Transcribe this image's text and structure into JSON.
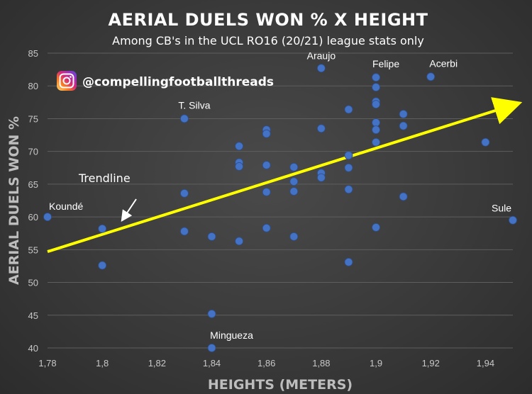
{
  "chart_data": {
    "type": "scatter",
    "title": "AERIAL DUELS WON % X HEIGHT",
    "subtitle": "Among CB's in the UCL RO16 (20/21) league stats only",
    "xlabel": "HEIGHTS (METERS)",
    "ylabel": "AERIAL DUELS WON %",
    "xlim": [
      1.78,
      1.95
    ],
    "ylim": [
      40,
      85
    ],
    "x_ticks": [
      "1,78",
      "1,8",
      "1,82",
      "1,84",
      "1,86",
      "1,88",
      "1,9",
      "1,92",
      "1,94"
    ],
    "y_ticks": [
      "40",
      "45",
      "50",
      "55",
      "60",
      "65",
      "70",
      "75",
      "80",
      "85"
    ],
    "grid": "horizontal",
    "points": [
      {
        "x": 1.78,
        "y": 60.0,
        "label": "Koundé"
      },
      {
        "x": 1.8,
        "y": 58.2,
        "label": ""
      },
      {
        "x": 1.8,
        "y": 52.6,
        "label": ""
      },
      {
        "x": 1.83,
        "y": 75.0,
        "label": "T. Silva"
      },
      {
        "x": 1.83,
        "y": 63.6,
        "label": ""
      },
      {
        "x": 1.83,
        "y": 57.8,
        "label": ""
      },
      {
        "x": 1.84,
        "y": 57.0,
        "label": ""
      },
      {
        "x": 1.84,
        "y": 45.2,
        "label": ""
      },
      {
        "x": 1.84,
        "y": 40.0,
        "label": "Mingueza"
      },
      {
        "x": 1.85,
        "y": 70.8,
        "label": ""
      },
      {
        "x": 1.85,
        "y": 68.3,
        "label": ""
      },
      {
        "x": 1.85,
        "y": 67.7,
        "label": ""
      },
      {
        "x": 1.85,
        "y": 56.3,
        "label": ""
      },
      {
        "x": 1.86,
        "y": 73.3,
        "label": ""
      },
      {
        "x": 1.86,
        "y": 72.7,
        "label": ""
      },
      {
        "x": 1.86,
        "y": 67.9,
        "label": ""
      },
      {
        "x": 1.86,
        "y": 63.8,
        "label": ""
      },
      {
        "x": 1.86,
        "y": 58.3,
        "label": ""
      },
      {
        "x": 1.87,
        "y": 67.6,
        "label": ""
      },
      {
        "x": 1.87,
        "y": 65.4,
        "label": ""
      },
      {
        "x": 1.87,
        "y": 63.9,
        "label": ""
      },
      {
        "x": 1.87,
        "y": 57.0,
        "label": ""
      },
      {
        "x": 1.88,
        "y": 82.7,
        "label": "Araujo"
      },
      {
        "x": 1.88,
        "y": 73.5,
        "label": ""
      },
      {
        "x": 1.88,
        "y": 66.7,
        "label": ""
      },
      {
        "x": 1.88,
        "y": 66.0,
        "label": ""
      },
      {
        "x": 1.89,
        "y": 76.4,
        "label": ""
      },
      {
        "x": 1.89,
        "y": 69.4,
        "label": ""
      },
      {
        "x": 1.89,
        "y": 67.5,
        "label": ""
      },
      {
        "x": 1.89,
        "y": 64.2,
        "label": ""
      },
      {
        "x": 1.89,
        "y": 53.1,
        "label": ""
      },
      {
        "x": 1.9,
        "y": 81.3,
        "label": "Felipe"
      },
      {
        "x": 1.9,
        "y": 79.8,
        "label": ""
      },
      {
        "x": 1.9,
        "y": 77.6,
        "label": ""
      },
      {
        "x": 1.9,
        "y": 77.2,
        "label": ""
      },
      {
        "x": 1.9,
        "y": 74.4,
        "label": ""
      },
      {
        "x": 1.9,
        "y": 73.3,
        "label": ""
      },
      {
        "x": 1.9,
        "y": 71.4,
        "label": ""
      },
      {
        "x": 1.9,
        "y": 58.4,
        "label": ""
      },
      {
        "x": 1.91,
        "y": 75.7,
        "label": ""
      },
      {
        "x": 1.91,
        "y": 73.9,
        "label": ""
      },
      {
        "x": 1.91,
        "y": 63.1,
        "label": ""
      },
      {
        "x": 1.92,
        "y": 81.4,
        "label": "Acerbi"
      },
      {
        "x": 1.94,
        "y": 71.4,
        "label": ""
      },
      {
        "x": 1.95,
        "y": 59.5,
        "label": "Sule"
      }
    ],
    "trendline": {
      "label": "Trendline",
      "start": [
        1.78,
        54.7
      ],
      "end": [
        1.95,
        77.0
      ],
      "color": "#ffff00"
    },
    "point_color": "#4472c4",
    "grid_color": "#5e5e5e"
  },
  "watermark": {
    "handle": "@compellingfootballthreads",
    "icon": "instagram-icon"
  }
}
